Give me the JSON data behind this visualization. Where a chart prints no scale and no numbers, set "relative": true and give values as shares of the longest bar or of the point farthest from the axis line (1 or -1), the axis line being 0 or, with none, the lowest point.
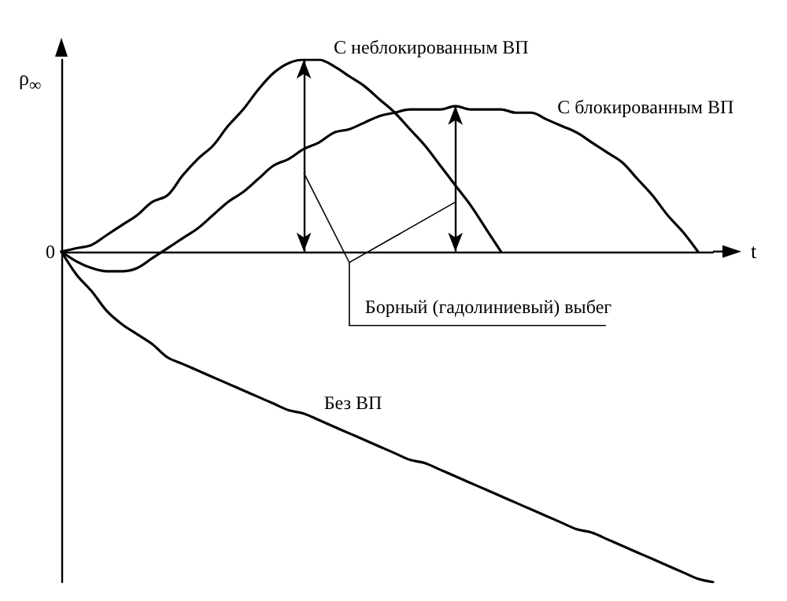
{
  "chart_data": {
    "type": "line",
    "relative": true,
    "xlabel": "t",
    "ylabel": "ρ$_{∞}$",
    "marker": "none",
    "tick_labels": false,
    "categories": [
      null,
      null,
      null,
      null,
      null,
      null,
      null,
      null,
      null,
      null,
      null,
      null,
      null,
      null,
      null,
      null,
      null,
      null,
      null,
      null,
      null,
      null,
      null,
      null,
      null,
      null,
      null,
      null,
      null,
      null,
      null,
      null,
      null,
      null,
      null,
      null,
      null,
      null,
      null,
      null,
      null,
      null,
      null,
      null
    ],
    "annotations": [
      "Борный (гадолиниевый) выбег",
      "0"
    ],
    "series": [
      {
        "name": "С неблокированным ВП",
        "color": "#000000",
        "values": [
          0,
          0.01,
          0.02,
          0.05,
          0.08,
          0.11,
          0.15,
          0.17,
          0.23,
          0.28,
          0.32,
          0.38,
          0.43,
          0.49,
          0.54,
          0.57,
          0.58,
          0.58,
          0.56,
          0.53,
          0.5,
          0.46,
          0.42,
          0.37,
          0.32,
          0.26,
          0.2,
          0.14,
          0.07,
          0,
          null,
          null,
          null,
          null,
          null,
          null,
          null,
          null,
          null,
          null,
          null,
          null,
          null,
          null
        ]
      },
      {
        "name": "С блокированным ВП",
        "color": "#000000",
        "values": [
          0,
          -0.03,
          -0.05,
          -0.06,
          -0.06,
          -0.05,
          -0.02,
          0.01,
          0.04,
          0.07,
          0.11,
          0.15,
          0.18,
          0.22,
          0.26,
          0.28,
          0.31,
          0.33,
          0.36,
          0.37,
          0.39,
          0.41,
          0.42,
          0.43,
          0.43,
          0.43,
          0.44,
          0.43,
          0.43,
          0.43,
          0.42,
          0.42,
          0.4,
          0.38,
          0.36,
          0.33,
          0.3,
          0.27,
          0.22,
          0.17,
          0.11,
          0.06,
          0,
          null
        ]
      },
      {
        "name": "Без ВП",
        "color": "#000000",
        "values": [
          0,
          -0.07,
          -0.12,
          -0.18,
          -0.22,
          -0.25,
          -0.28,
          -0.32,
          -0.34,
          -0.36,
          -0.38,
          -0.4,
          -0.42,
          -0.44,
          -0.46,
          -0.48,
          -0.49,
          -0.51,
          -0.53,
          -0.55,
          -0.57,
          -0.59,
          -0.61,
          -0.63,
          -0.64,
          -0.66,
          -0.68,
          -0.7,
          -0.72,
          -0.74,
          -0.76,
          -0.78,
          -0.8,
          -0.82,
          -0.84,
          -0.85,
          -0.87,
          -0.89,
          -0.91,
          -0.93,
          -0.95,
          -0.97,
          -0.99,
          -1
        ]
      }
    ]
  }
}
